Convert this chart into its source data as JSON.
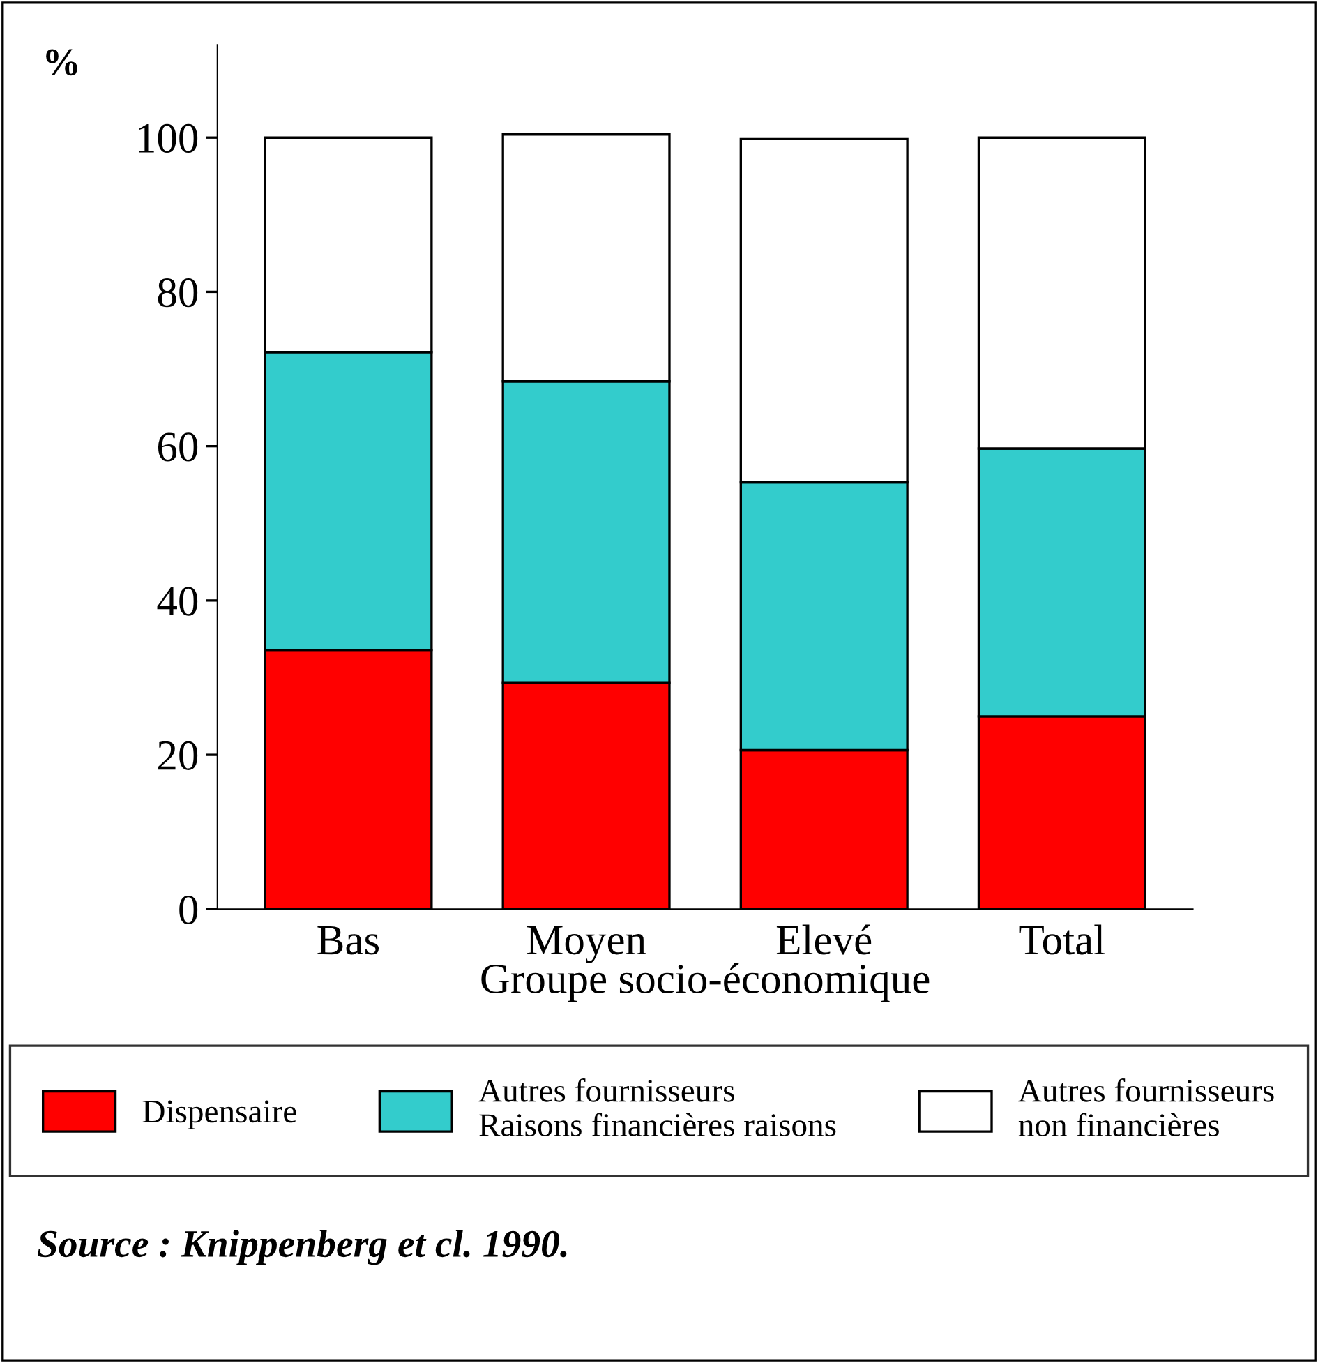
{
  "chart_data": {
    "type": "bar",
    "stacked": true,
    "ylabel": "%",
    "xlabel": "Groupe socio-économique",
    "categories": [
      "Bas",
      "Moyen",
      "Elevé",
      "Total"
    ],
    "series": [
      {
        "name": "Dispensaire",
        "color": "#ff0000",
        "values": [
          33.6,
          29.3,
          20.6,
          25.0
        ]
      },
      {
        "name": "Autres fournisseurs\nRaisons financières raisons",
        "color": "#33cccc",
        "values": [
          38.6,
          39.1,
          34.7,
          34.7
        ]
      },
      {
        "name": "Autres fournisseurs\nnon financières",
        "color": "#ffffff",
        "values": [
          27.8,
          32.0,
          44.5,
          40.3
        ]
      }
    ],
    "ylim": [
      0,
      112
    ],
    "yticks": [
      0,
      20,
      40,
      60,
      80,
      100
    ],
    "grid": false,
    "legend": "bottom",
    "annotations": [
      "Source : Knippenberg et cl. 1990."
    ]
  }
}
